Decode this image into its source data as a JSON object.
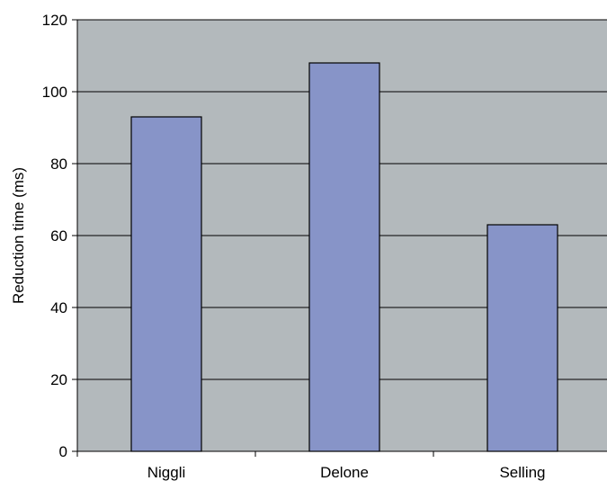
{
  "chart_data": {
    "type": "bar",
    "title": "",
    "xlabel": "",
    "ylabel": "Reduction time (ms)",
    "categories": [
      "Niggli",
      "Delone",
      "Selling"
    ],
    "values": [
      93,
      108,
      63
    ],
    "ylim": [
      0,
      120
    ],
    "yticks": [
      0,
      20,
      40,
      60,
      80,
      100,
      120
    ],
    "grid": true,
    "legend": "none",
    "colors": {
      "plot_background": "#b3b9bc",
      "bar_fill": "#8794c8",
      "bar_stroke": "#000000",
      "gridline": "#000000",
      "axis": "#000000"
    }
  }
}
